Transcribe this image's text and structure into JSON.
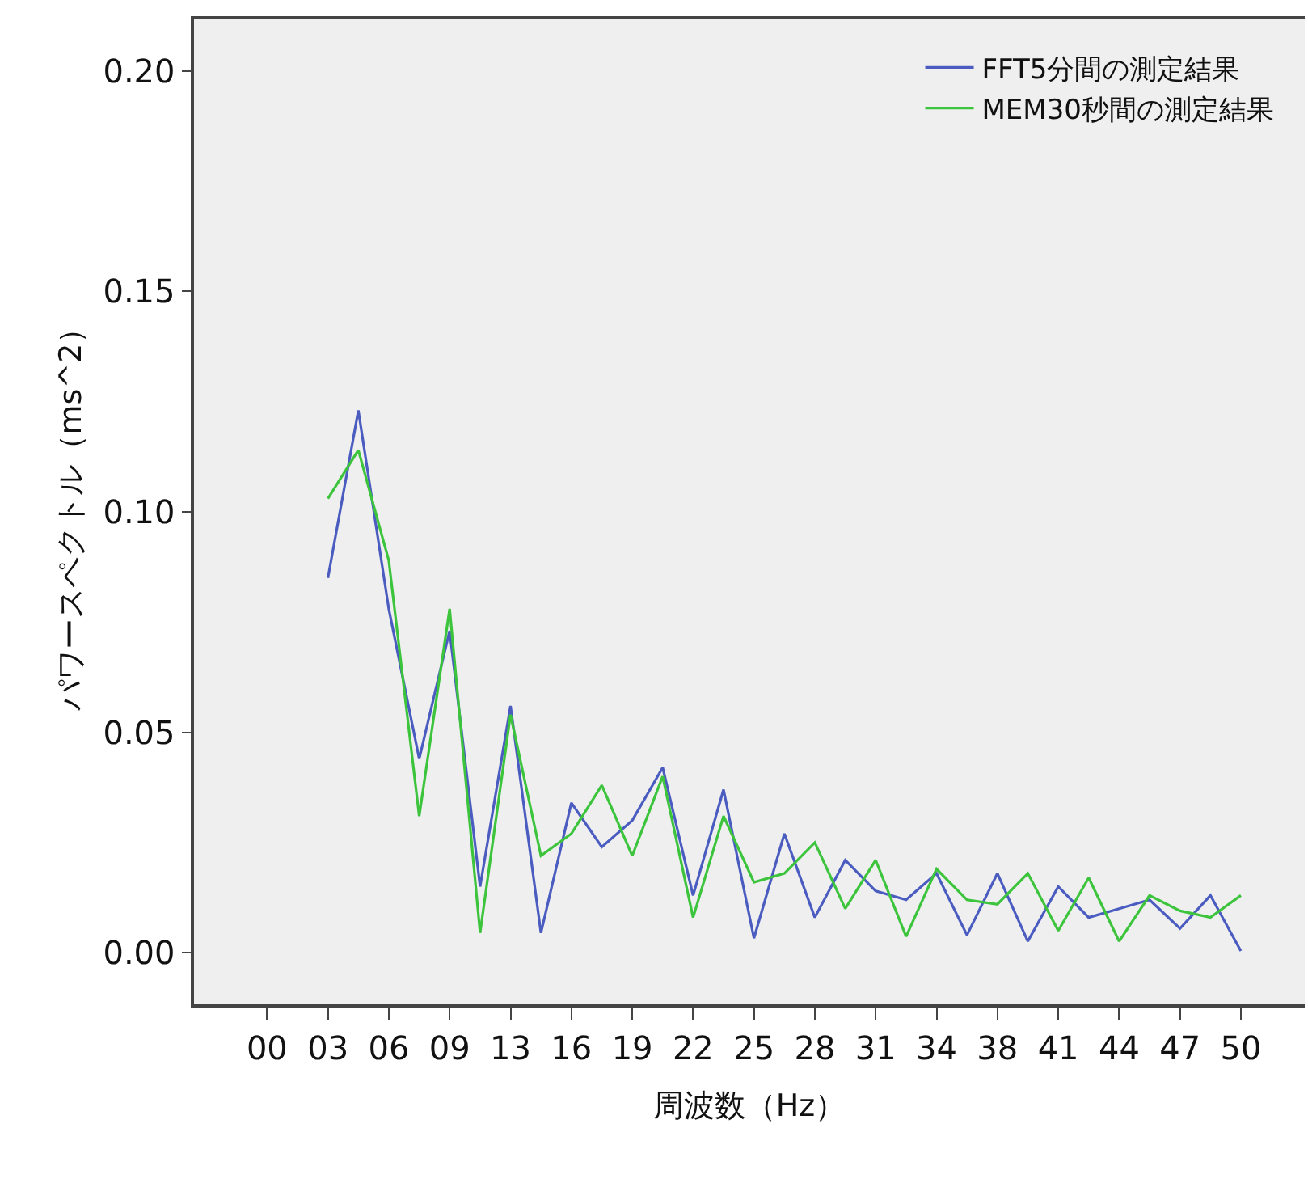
{
  "chart_data": {
    "type": "line",
    "xlabel": "周波数（Hz）",
    "ylabel": "パワースペクトル（ms^2）",
    "categories": [
      "00",
      null,
      "03",
      null,
      "06",
      null,
      "09",
      null,
      "13",
      null,
      "16",
      null,
      "19",
      null,
      "22",
      null,
      "25",
      null,
      "28",
      null,
      "31",
      null,
      "34",
      null,
      "38",
      null,
      "41",
      null,
      "44",
      null,
      "47",
      null,
      "50"
    ],
    "series": [
      {
        "name": "FFT5分間の測定結果",
        "color": "#4a5cc0",
        "values": [
          null,
          null,
          0.085,
          0.123,
          0.078,
          0.044,
          0.073,
          0.015,
          0.056,
          0.0045,
          0.034,
          0.024,
          0.03,
          0.042,
          0.013,
          0.037,
          0.0033,
          0.027,
          0.008,
          0.021,
          0.014,
          0.012,
          0.018,
          0.004,
          0.018,
          0.0026,
          0.015,
          0.008,
          0.01,
          0.012,
          0.0055,
          0.013,
          0.0004
        ]
      },
      {
        "name": "MEM30秒間の測定結果",
        "color": "#3cc43c",
        "values": [
          null,
          null,
          0.103,
          0.114,
          0.089,
          0.031,
          0.078,
          0.0045,
          0.054,
          0.022,
          0.027,
          0.038,
          0.022,
          0.04,
          0.008,
          0.031,
          0.016,
          0.018,
          0.025,
          0.01,
          0.021,
          0.0037,
          0.019,
          0.012,
          0.011,
          0.018,
          0.005,
          0.017,
          0.0026,
          0.013,
          0.0095,
          0.008,
          0.013
        ]
      }
    ],
    "ylim": [
      -0.0117,
      0.2117
    ],
    "yticks": [
      {
        "value": 0,
        "label": "0.00"
      },
      {
        "value": 0.05,
        "label": "0.05"
      },
      {
        "value": 0.1,
        "label": "0.10"
      },
      {
        "value": 0.15,
        "label": "0.15"
      },
      {
        "value": 0.2,
        "label": "0.20"
      }
    ],
    "grid": false,
    "legend": "top right",
    "marker": "none",
    "line_style": "solid"
  }
}
